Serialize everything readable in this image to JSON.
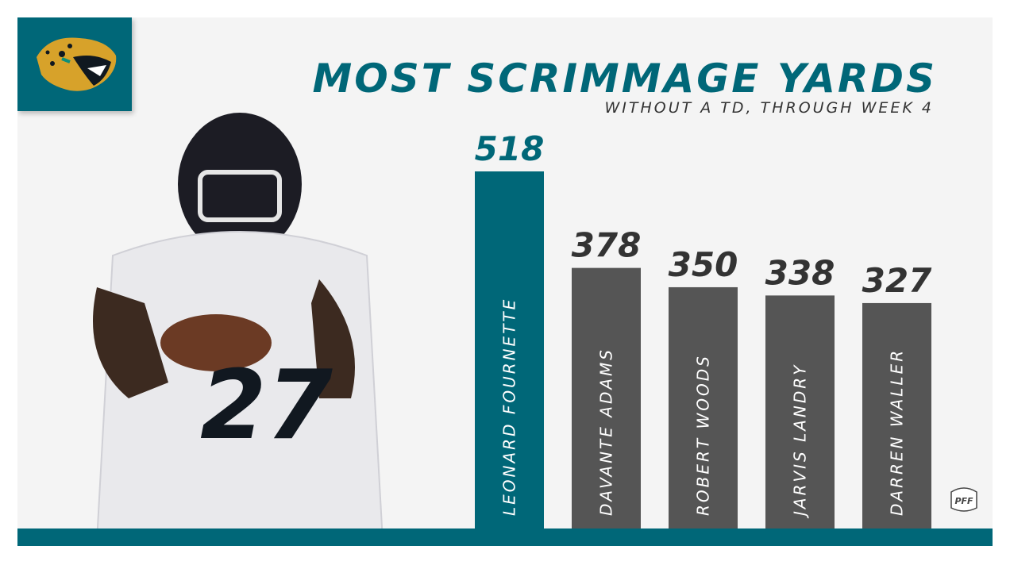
{
  "title": "MOST SCRIMMAGE YARDS",
  "subtitle": "WITHOUT A TD, THROUGH WEEK 4",
  "colors": {
    "teal": "#006778",
    "grey_bar": "#555555",
    "value_text": "#333333",
    "background": "#f4f4f4"
  },
  "logo": {
    "icon": "jaguar-head-icon"
  },
  "watermark": {
    "icon": "pff-logo-icon",
    "text": "PFF"
  },
  "chart_data": {
    "type": "bar",
    "title": "MOST SCRIMMAGE YARDS",
    "subtitle": "WITHOUT A TD, THROUGH WEEK 4",
    "categories": [
      "LEONARD FOURNETTE",
      "DAVANTE ADAMS",
      "ROBERT WOODS",
      "JARVIS LANDRY",
      "DARREN WALLER"
    ],
    "values": [
      518,
      378,
      350,
      338,
      327
    ],
    "highlight_index": 0,
    "ylim": [
      0,
      518
    ],
    "grid": false,
    "legend": "none",
    "orientation": "vertical",
    "category_labels": "rotated inside bars"
  }
}
